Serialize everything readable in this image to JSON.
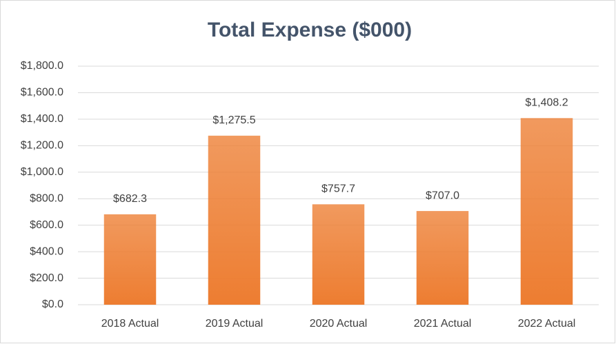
{
  "chart_data": {
    "type": "bar",
    "title": "Total Expense ($000)",
    "categories": [
      "2018 Actual",
      "2019 Actual",
      "2020 Actual",
      "2021 Actual",
      "2022 Actual"
    ],
    "values": [
      682.3,
      1275.5,
      757.7,
      707.0,
      1408.2
    ],
    "value_labels": [
      "$682.3",
      "$1,275.5",
      "$757.7",
      "$707.0",
      "$1,408.2"
    ],
    "color": "#ed7d31",
    "ylim": [
      0,
      1800
    ],
    "yticks": [
      {
        "value": 0,
        "label": "$0.0"
      },
      {
        "value": 200,
        "label": "$200.0"
      },
      {
        "value": 400,
        "label": "$400.0"
      },
      {
        "value": 600,
        "label": "$600.0"
      },
      {
        "value": 800,
        "label": "$800.0"
      },
      {
        "value": 1000,
        "label": "$1,000.0"
      },
      {
        "value": 1200,
        "label": "$1,200.0"
      },
      {
        "value": 1400,
        "label": "$1,400.0"
      },
      {
        "value": 1600,
        "label": "$1,600.0"
      },
      {
        "value": 1800,
        "label": "$1,800.0"
      }
    ],
    "grid": true
  }
}
